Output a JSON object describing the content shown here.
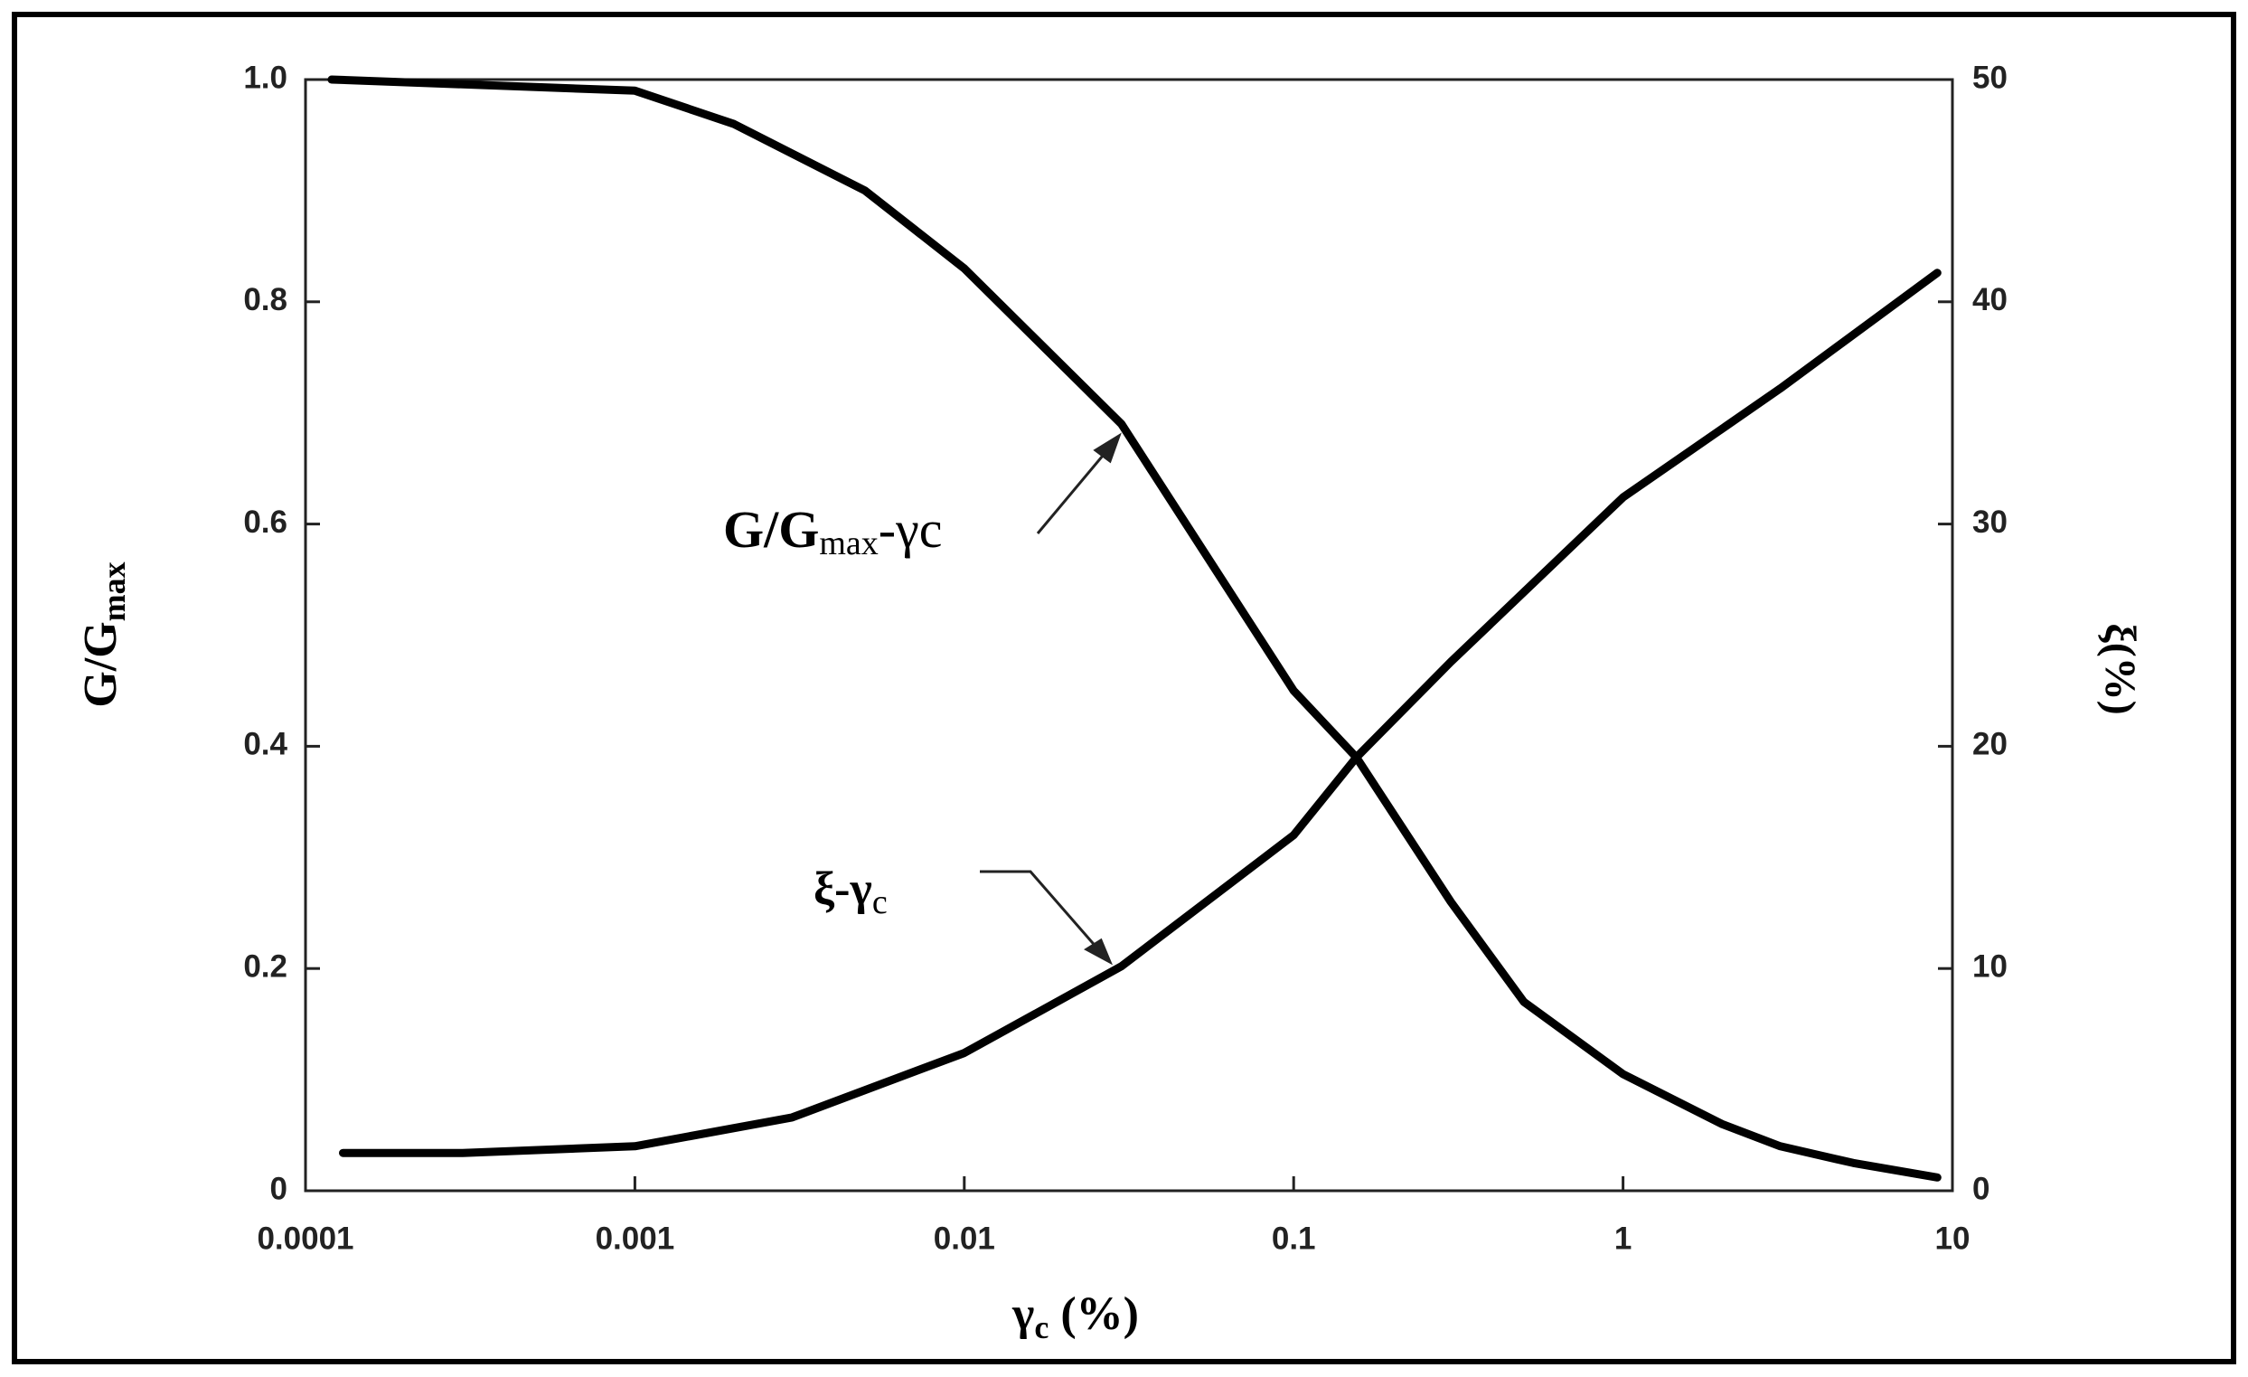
{
  "chart_data": {
    "type": "line",
    "xlabel": {
      "main": "γ",
      "sub": "c",
      "tail": " (%)"
    },
    "ylabel": {
      "main": "G/G",
      "sub": "max"
    },
    "y2label": "ξ(%)",
    "xscale": "log",
    "xlim": [
      0.0001,
      10
    ],
    "xticks": [
      0.0001,
      0.001,
      0.01,
      0.1,
      1,
      10
    ],
    "ylim": [
      0,
      1
    ],
    "yticks": [
      0,
      0.2,
      0.4,
      0.6,
      0.8,
      {
        "value": 1,
        "label": "1.0"
      }
    ],
    "y2lim": [
      0,
      50
    ],
    "y2ticks": [
      0,
      10,
      20,
      30,
      40,
      50
    ],
    "annotations": [
      {
        "main": "G/G",
        "sub": "max",
        "tail": "-γc"
      },
      {
        "main": "ξ-γ",
        "sub": "c"
      }
    ],
    "series": [
      {
        "color": "#000000",
        "axis": "y",
        "x": [
          0.00012,
          0.001,
          0.002,
          0.005,
          0.01,
          0.03,
          0.1,
          0.155,
          0.3,
          0.5,
          1,
          2,
          3,
          5,
          9
        ],
        "values": [
          1.0,
          0.99,
          0.96,
          0.9,
          0.83,
          0.69,
          0.45,
          0.39,
          0.26,
          0.17,
          0.105,
          0.06,
          0.04,
          0.025,
          0.012
        ]
      },
      {
        "color": "#000000",
        "axis": "y2",
        "x": [
          0.00013,
          0.0003,
          0.001,
          0.003,
          0.01,
          0.03,
          0.1,
          0.155,
          0.3,
          1,
          3,
          9
        ],
        "values": [
          1.7,
          1.7,
          2.0,
          3.3,
          6.2,
          10.1,
          16,
          19.5,
          23.8,
          31.2,
          36.1,
          41.3
        ]
      }
    ]
  }
}
